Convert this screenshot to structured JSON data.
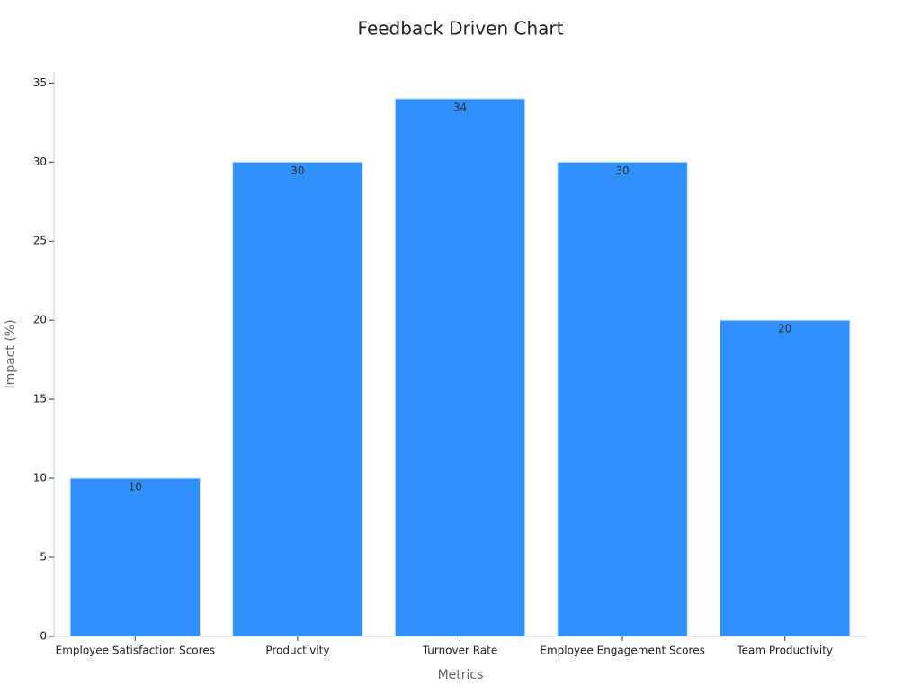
{
  "chart_data": {
    "type": "bar",
    "title": "Feedback Driven Chart",
    "x_label": "Metrics",
    "y_label": "Impact (%)",
    "categories": [
      "Employee Satisfaction Scores",
      "Productivity",
      "Turnover Rate",
      "Employee Engagement Scores",
      "Team Productivity"
    ],
    "values": [
      10,
      30,
      34,
      30,
      20
    ],
    "color": "#2f91f9",
    "ylim": [
      0,
      35.7
    ],
    "yticks": [
      0,
      5,
      10,
      15,
      20,
      25,
      30,
      35
    ],
    "grid": false
  }
}
